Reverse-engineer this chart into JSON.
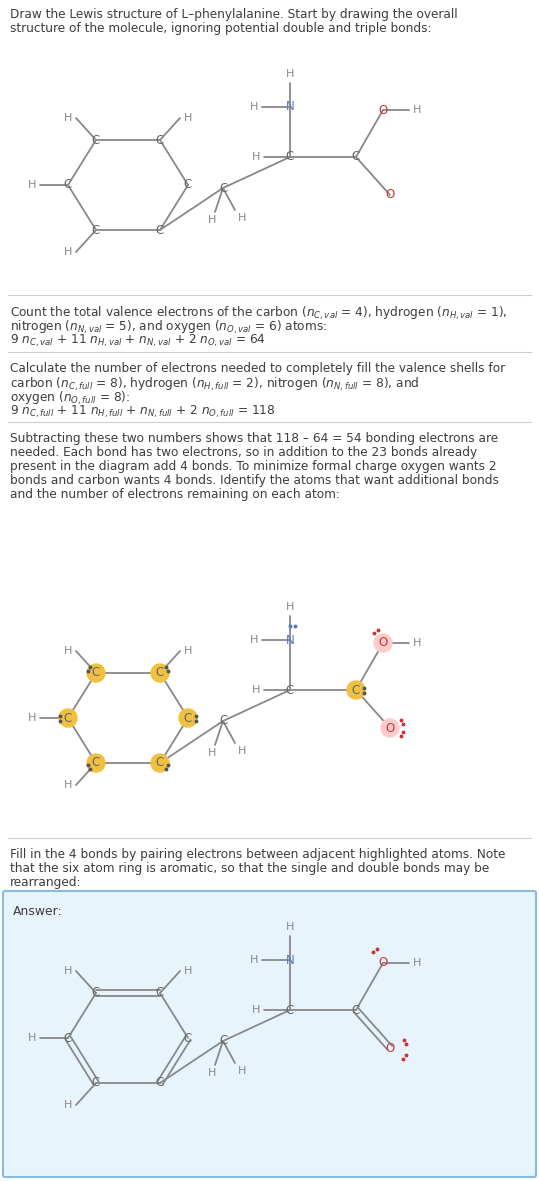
{
  "bg_color": "#ffffff",
  "text_color": "#3d3d3d",
  "gray_h": "#888888",
  "carbon_color": "#666666",
  "nitrogen_color": "#5577bb",
  "oxygen_color": "#cc3333",
  "highlight_yellow": "#f0c040",
  "answer_bg": "#e8f4fc",
  "answer_border": "#88bbdd",
  "sep_color": "#cccccc",
  "bond_color": "#888888",
  "line1": "Draw the Lewis structure of L–phenylalanine. Start by drawing the overall",
  "line2": "structure of the molecule, ignoring potential double and triple bonds:",
  "sec2_lines": [
    "Count the total valence electrons of the carbon ($n_{C,val}$ = 4), hydrogen ($n_{H,val}$ = 1),",
    "nitrogen ($n_{N,val}$ = 5), and oxygen ($n_{O,val}$ = 6) atoms:",
    "9 $n_{C,val}$ + 11 $n_{H,val}$ + $n_{N,val}$ + 2 $n_{O,val}$ = 64"
  ],
  "sec3_lines": [
    "Calculate the number of electrons needed to completely fill the valence shells for",
    "carbon ($n_{C,full}$ = 8), hydrogen ($n_{H,full}$ = 2), nitrogen ($n_{N,full}$ = 8), and",
    "oxygen ($n_{O,full}$ = 8):",
    "9 $n_{C,full}$ + 11 $n_{H,full}$ + $n_{N,full}$ + 2 $n_{O,full}$ = 118"
  ],
  "sec4_lines": [
    "Subtracting these two numbers shows that 118 – 64 = 54 bonding electrons are",
    "needed. Each bond has two electrons, so in addition to the 23 bonds already",
    "present in the diagram add 4 bonds. To minimize formal charge oxygen wants 2",
    "bonds and carbon wants 4 bonds. Identify the atoms that want additional bonds",
    "and the number of electrons remaining on each atom:"
  ],
  "sec5_lines": [
    "Fill in the 4 bonds by pairing electrons between adjacent highlighted atoms. Note",
    "that the six atom ring is aromatic, so that the single and double bonds may be",
    "rearranged:"
  ],
  "answer_label": "Answer:"
}
